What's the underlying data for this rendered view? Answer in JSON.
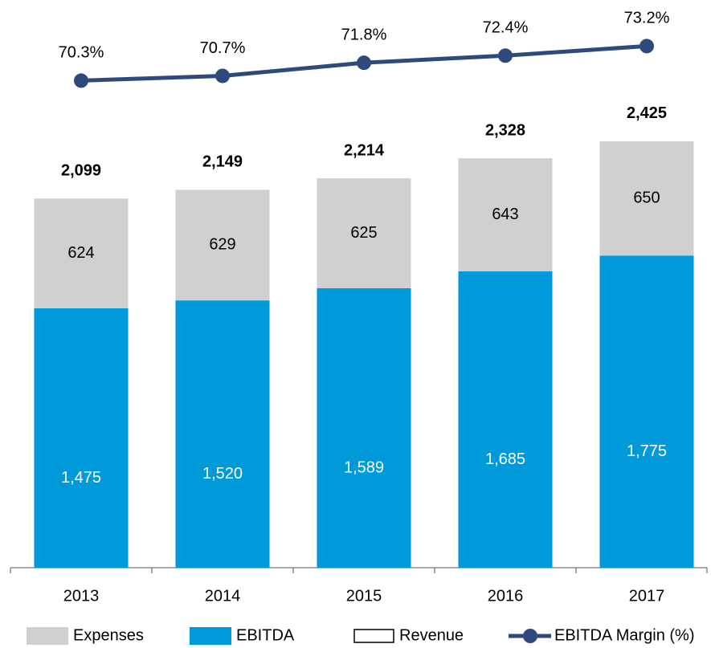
{
  "chart_data": {
    "type": "stacked-bar-line",
    "categories": [
      "2013",
      "2014",
      "2015",
      "2016",
      "2017"
    ],
    "series": [
      {
        "name": "EBITDA",
        "color": "#009ada",
        "values": [
          1475,
          1520,
          1589,
          1685,
          1775
        ],
        "value_labels": [
          "1,475",
          "1,520",
          "1,589",
          "1,685",
          "1,775"
        ]
      },
      {
        "name": "Expenses",
        "color": "#d0d0d0",
        "values": [
          624,
          629,
          625,
          643,
          650
        ]
      },
      {
        "name": "Revenue",
        "values": [
          2099,
          2149,
          2214,
          2328,
          2425
        ],
        "value_labels": [
          "2,099",
          "2,149",
          "2,214",
          "2,328",
          "2,425"
        ]
      },
      {
        "name": "EBITDA Margin (%)",
        "color": "#2e4a7d",
        "axis": "y2",
        "values": [
          70.3,
          70.7,
          71.8,
          72.4,
          73.2
        ],
        "value_labels": [
          "70.3%",
          "70.7%",
          "71.8%",
          "72.4%",
          "73.2%"
        ]
      }
    ],
    "ylim": [
      0,
      3000
    ],
    "y2lim": [
      29.4,
      73.7
    ]
  }
}
